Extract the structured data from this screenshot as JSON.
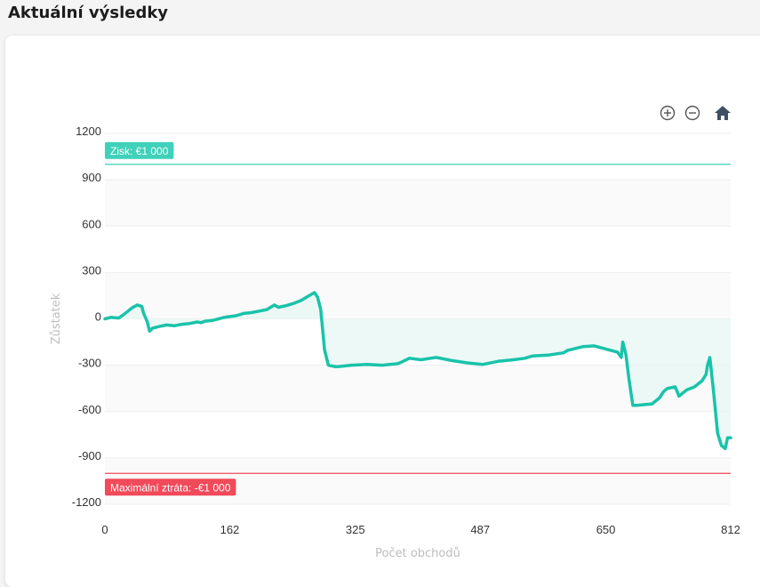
{
  "page": {
    "title": "Aktuální výsledky"
  },
  "toolbar": {
    "zoom_in": "zoom-in-icon",
    "zoom_out": "zoom-out-icon",
    "home": "home-icon"
  },
  "chart_data": {
    "type": "area",
    "xlabel": "Počet obchodů",
    "ylabel": "Zůstatek",
    "xlim": [
      0,
      812
    ],
    "ylim": [
      -1200,
      1200
    ],
    "xticks": [
      0,
      162,
      325,
      487,
      650,
      812
    ],
    "yticks": [
      1200,
      900,
      600,
      300,
      0,
      -300,
      -600,
      -900,
      -1200
    ],
    "grid": true,
    "colors": {
      "line": "#19c3a9",
      "fill": "#e6f7f3",
      "profit": "#3fd1b9",
      "loss": "#f04a5b",
      "band": "#fafafa"
    },
    "annotations": [
      {
        "label": "Zisk: €1 000",
        "y": 1000,
        "color": "#3fd1b9"
      },
      {
        "label": "Maximální ztráta: -€1 000",
        "y": -1000,
        "color": "#f04a5b"
      }
    ],
    "series": [
      {
        "x": [
          0,
          8,
          18,
          25,
          35,
          42,
          48,
          50,
          55,
          58,
          62,
          70,
          80,
          90,
          100,
          110,
          120,
          125,
          130,
          140,
          155,
          170,
          180,
          190,
          200,
          210,
          220,
          225,
          235,
          245,
          255,
          265,
          272,
          276,
          280,
          285,
          290,
          300,
          320,
          340,
          360,
          380,
          385,
          395,
          410,
          430,
          450,
          470,
          490,
          510,
          530,
          545,
          555,
          575,
          595,
          600,
          620,
          635,
          650,
          665,
          670,
          672,
          676,
          680,
          685,
          690,
          710,
          720,
          725,
          730,
          740,
          745,
          750,
          755,
          760,
          765,
          770,
          775,
          780,
          782,
          785,
          790,
          795,
          800,
          805,
          808,
          812
        ],
        "y": [
          0,
          10,
          5,
          30,
          70,
          90,
          80,
          40,
          -20,
          -80,
          -60,
          -50,
          -40,
          -45,
          -35,
          -30,
          -20,
          -25,
          -15,
          -10,
          10,
          20,
          35,
          40,
          50,
          60,
          90,
          75,
          85,
          100,
          120,
          150,
          170,
          140,
          60,
          -200,
          -300,
          -310,
          -300,
          -295,
          -300,
          -290,
          -280,
          -255,
          -265,
          -250,
          -270,
          -285,
          -295,
          -275,
          -265,
          -255,
          -240,
          -235,
          -220,
          -205,
          -180,
          -175,
          -195,
          -215,
          -250,
          -150,
          -230,
          -390,
          -560,
          -560,
          -550,
          -510,
          -470,
          -450,
          -440,
          -500,
          -480,
          -460,
          -450,
          -440,
          -420,
          -400,
          -360,
          -300,
          -250,
          -480,
          -740,
          -820,
          -840,
          -770,
          -770
        ]
      }
    ]
  }
}
